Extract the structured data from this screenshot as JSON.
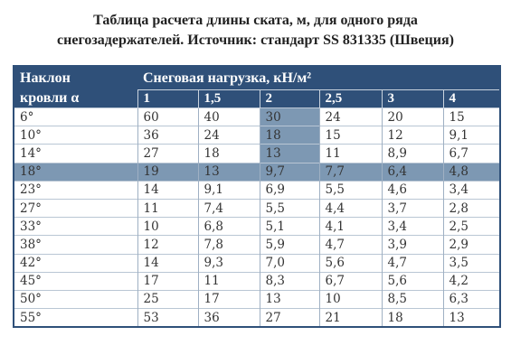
{
  "title": [
    "Таблица расчета длины ската, м, для одного ряда",
    "снегозадержателей. Источник: стандарт SS 831335 (Швеция)"
  ],
  "table": {
    "header": {
      "corner_top": "Наклон",
      "corner_bottom": "кровли α",
      "group": "Снеговая нагрузка, кН/м²",
      "columns": [
        "1",
        "1,5",
        "2",
        "2,5",
        "3",
        "4"
      ]
    },
    "rows": [
      [
        "6°",
        "60",
        "40",
        "30",
        "24",
        "20",
        "15"
      ],
      [
        "10°",
        "36",
        "24",
        "18",
        "15",
        "12",
        "9,1"
      ],
      [
        "14°",
        "27",
        "18",
        "13",
        "11",
        "8,9",
        "6,7"
      ],
      [
        "18°",
        "19",
        "13",
        "9,7",
        "7,7",
        "6,4",
        "4,8"
      ],
      [
        "23°",
        "14",
        "9,1",
        "6,9",
        "5,5",
        "4,6",
        "3,4"
      ],
      [
        "27°",
        "11",
        "7,4",
        "5,5",
        "4,4",
        "3,7",
        "2,8"
      ],
      [
        "33°",
        "10",
        "6,8",
        "5,1",
        "4,1",
        "3,4",
        "2,5"
      ],
      [
        "38°",
        "12",
        "7,8",
        "5,9",
        "4,7",
        "3,9",
        "2,9"
      ],
      [
        "42°",
        "14",
        "9,3",
        "7,0",
        "5,6",
        "4,7",
        "3,5"
      ],
      [
        "45°",
        "17",
        "11",
        "8,3",
        "6,7",
        "5,6",
        "4,2"
      ],
      [
        "50°",
        "25",
        "17",
        "13",
        "10",
        "8,5",
        "6,3"
      ],
      [
        "55°",
        "53",
        "36",
        "27",
        "21",
        "18",
        "13"
      ]
    ]
  }
}
